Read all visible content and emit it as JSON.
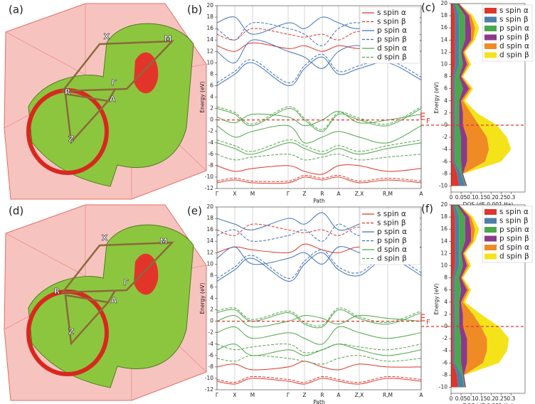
{
  "fermi_surfaces": [
    {
      "panel_label": "(a)",
      "points": [
        "X",
        "M",
        "Γ",
        "R",
        "A",
        "Z"
      ]
    },
    {
      "panel_label": "(d)",
      "points": [
        "X",
        "M",
        "Γ",
        "R",
        "A",
        "Z"
      ]
    }
  ],
  "chart_data": [
    {
      "type": "line",
      "panel_label": "(b)",
      "xlabel": "Path",
      "ylabel": "Energy (eV)",
      "x": [
        0,
        25,
        50,
        100,
        123,
        148,
        171,
        200,
        240,
        287
      ],
      "xlim": [
        0,
        287
      ],
      "xticks": [
        {
          "value": 0,
          "label": "Γ"
        },
        {
          "value": 25,
          "label": "X"
        },
        {
          "value": 50,
          "label": "M"
        },
        {
          "value": 100,
          "label": "Γ"
        },
        {
          "value": 123,
          "label": "Z"
        },
        {
          "value": 148,
          "label": "R"
        },
        {
          "value": 171,
          "label": "A"
        },
        {
          "value": 200,
          "label": "Z,X"
        },
        {
          "value": 240,
          "label": "R,M"
        },
        {
          "value": 287,
          "label": "A"
        }
      ],
      "ylim": [
        -12,
        20
      ],
      "yticks": [
        -12,
        -10,
        -8,
        -6,
        -4,
        -2,
        0,
        2,
        4,
        6,
        8,
        10,
        12,
        14,
        16,
        18,
        20
      ],
      "fermi_level": 0,
      "legend": "upper right",
      "series": [
        {
          "name": "s spin α",
          "color": "#e0352a",
          "dashed": false,
          "bands": [
            [
              -11,
              -10.5,
              -11,
              -11,
              -10,
              -10.5,
              -10,
              -11,
              -10.5,
              -11
            ],
            [
              -8,
              -9,
              -8.5,
              -8,
              -9,
              -9.5,
              -8,
              -8,
              -9,
              -8.5
            ],
            [
              13,
              12,
              13.5,
              12.5,
              13,
              12,
              13,
              12.5,
              13,
              12
            ]
          ]
        },
        {
          "name": "s spin β",
          "color": "#e0352a",
          "dashed": true,
          "bands": [
            [
              -10.7,
              -10.2,
              -10.7,
              -10.7,
              -9.7,
              -10.2,
              -9.7,
              -10.7,
              -10.2,
              -10.7
            ],
            [
              15,
              14,
              16,
              15,
              14.5,
              15,
              14,
              15.5,
              14,
              15
            ]
          ]
        },
        {
          "name": "p spin α",
          "color": "#3f72b5",
          "dashed": false,
          "bands": [
            [
              6,
              8,
              10,
              6,
              9,
              11,
              8,
              9,
              10,
              7
            ],
            [
              12,
              10,
              14,
              12,
              11,
              9,
              12,
              13,
              11,
              14
            ],
            [
              17,
              18,
              15,
              17,
              16,
              18,
              17,
              16,
              18,
              17
            ]
          ]
        },
        {
          "name": "p spin β",
          "color": "#3f72b5",
          "dashed": true,
          "bands": [
            [
              6.5,
              8.5,
              10.5,
              6.5,
              9.5,
              11.5,
              8.5,
              9.5,
              10.5,
              7.5
            ],
            [
              16,
              14,
              17,
              16,
              15,
              13,
              16,
              17,
              15,
              18
            ]
          ]
        },
        {
          "name": "d spin α",
          "color": "#4fa648",
          "dashed": false,
          "bands": [
            [
              2,
              1,
              -1,
              2,
              0,
              -2,
              1,
              0,
              -1,
              2
            ],
            [
              -1,
              -3,
              -2,
              -1,
              -4,
              -3,
              -2,
              -3,
              -4,
              -1
            ],
            [
              -4,
              -5,
              -6,
              -4,
              -5,
              -6,
              -5,
              -6,
              -5,
              -4
            ],
            [
              0.5,
              -0.5,
              1,
              0.5,
              -1,
              0,
              1.5,
              -0.5,
              0,
              1
            ]
          ]
        },
        {
          "name": "d spin β",
          "color": "#4fa648",
          "dashed": true,
          "bands": [
            [
              2.3,
              1.3,
              -0.7,
              2.3,
              0.3,
              -1.7,
              1.3,
              0.3,
              -0.7,
              2.3
            ],
            [
              -3.5,
              -4.5,
              -5.5,
              -3.5,
              -4.5,
              -5.5,
              -4.5,
              -5.5,
              -4.5,
              -3.5
            ],
            [
              -6,
              -7,
              -6.5,
              -6,
              -7,
              -6.5,
              -6,
              -7,
              -6.5,
              -6
            ]
          ]
        }
      ]
    },
    {
      "type": "stacked_area",
      "panel_label": "(c)",
      "xlabel": "DOS (dE 0.001 Ha)",
      "ylabel": "Energy (eV)",
      "fermi_label": "E",
      "fermi_label_sub": "F",
      "fermi_level": 0,
      "xlim": [
        0,
        0.37
      ],
      "xticks": [
        0,
        0.05,
        0.1,
        0.15,
        0.2,
        0.25,
        0.3
      ],
      "ylim": [
        -11,
        20
      ],
      "yticks": [
        -10,
        -8,
        -6,
        -4,
        -2,
        0,
        2,
        4,
        6,
        8,
        10,
        12,
        14,
        16,
        18,
        20
      ],
      "energies": [
        -10,
        -8,
        -6,
        -4,
        -2,
        0,
        2,
        4,
        6,
        8,
        10,
        12,
        14,
        16,
        18,
        20
      ],
      "legend": "upper right",
      "series": [
        {
          "name": "s spin α",
          "color": "#e0352a",
          "values": [
            0.04,
            0.03,
            0.01,
            0.01,
            0.01,
            0.01,
            0.01,
            0.01,
            0.01,
            0.01,
            0.02,
            0.02,
            0.02,
            0.02,
            0.02,
            0.01
          ]
        },
        {
          "name": "s spin β",
          "color": "#4d7fa8",
          "values": [
            0.03,
            0.02,
            0.01,
            0.01,
            0.01,
            0.01,
            0.01,
            0.01,
            0.01,
            0.01,
            0.02,
            0.02,
            0.02,
            0.02,
            0.02,
            0.01
          ]
        },
        {
          "name": "p spin α",
          "color": "#4aa84a",
          "values": [
            0.005,
            0.005,
            0.03,
            0.03,
            0.03,
            0.02,
            0.02,
            0.02,
            0.04,
            0.02,
            0.02,
            0.01,
            0.03,
            0.03,
            0.03,
            0.01
          ]
        },
        {
          "name": "p spin β",
          "color": "#8b3a8b",
          "values": [
            0.005,
            0.005,
            0.03,
            0.03,
            0.03,
            0.02,
            0.02,
            0.01,
            0.03,
            0.01,
            0.02,
            0.01,
            0.03,
            0.03,
            0.02,
            0.01
          ]
        },
        {
          "name": "d spin α",
          "color": "#f08a24",
          "values": [
            0,
            0,
            0.09,
            0.11,
            0.1,
            0.08,
            0.04,
            0.01,
            0.01,
            0.005,
            0.01,
            0.005,
            0.01,
            0.02,
            0.01,
            0
          ]
        },
        {
          "name": "d spin β",
          "color": "#f5e31a",
          "values": [
            0,
            0,
            0.08,
            0.11,
            0.1,
            0.09,
            0.03,
            0.01,
            0.01,
            0.005,
            0.01,
            0.005,
            0.01,
            0.02,
            0.01,
            0
          ]
        }
      ]
    },
    {
      "type": "line",
      "panel_label": "(e)",
      "xlabel": "Path",
      "ylabel": "Energy (eV)",
      "x": [
        0,
        25,
        50,
        100,
        123,
        148,
        171,
        200,
        240,
        287
      ],
      "xlim": [
        0,
        287
      ],
      "xticks": [
        {
          "value": 0,
          "label": "Γ"
        },
        {
          "value": 25,
          "label": "X"
        },
        {
          "value": 50,
          "label": "M"
        },
        {
          "value": 100,
          "label": "Γ"
        },
        {
          "value": 123,
          "label": "Z"
        },
        {
          "value": 148,
          "label": "R"
        },
        {
          "value": 171,
          "label": "A"
        },
        {
          "value": 200,
          "label": "Z,X"
        },
        {
          "value": 240,
          "label": "R,M"
        },
        {
          "value": 287,
          "label": "A"
        }
      ],
      "ylim": [
        -12,
        20
      ],
      "yticks": [
        -12,
        -10,
        -8,
        -6,
        -4,
        -2,
        0,
        2,
        4,
        6,
        8,
        10,
        12,
        14,
        16,
        18,
        20
      ],
      "fermi_level": 0,
      "legend": "upper right",
      "series": [
        {
          "name": "s spin α",
          "color": "#e0352a",
          "dashed": false,
          "bands": [
            [
              -10.5,
              -11,
              -10,
              -10.5,
              -11,
              -10,
              -10.5,
              -11,
              -10,
              -10.5
            ],
            [
              -8,
              -7.5,
              -8.5,
              -8,
              -7,
              -8,
              -8.5,
              -7.5,
              -8,
              -8
            ],
            [
              12,
              13,
              12.5,
              12,
              13.5,
              12.5,
              12,
              13,
              12,
              13
            ]
          ]
        },
        {
          "name": "s spin β",
          "color": "#e0352a",
          "dashed": true,
          "bands": [
            [
              -10.2,
              -10.7,
              -9.7,
              -10.2,
              -10.7,
              -9.7,
              -10.2,
              -10.7,
              -9.7,
              -10.2
            ],
            [
              16,
              15,
              17,
              16,
              15.5,
              16,
              15,
              16.5,
              15,
              16
            ]
          ]
        },
        {
          "name": "p spin α",
          "color": "#3f72b5",
          "dashed": false,
          "bands": [
            [
              7,
              9,
              11,
              7,
              10,
              12,
              9,
              8,
              11,
              8
            ],
            [
              11,
              13,
              10,
              11,
              12,
              10,
              13,
              12,
              10,
              13
            ],
            [
              18,
              17,
              16,
              18,
              17,
              19,
              16,
              17,
              19,
              18
            ]
          ]
        },
        {
          "name": "p spin β",
          "color": "#3f72b5",
          "dashed": true,
          "bands": [
            [
              7.5,
              9.5,
              11.5,
              7.5,
              10.5,
              12.5,
              9.5,
              8.5,
              11.5,
              8.5
            ],
            [
              15,
              16,
              14,
              15,
              16,
              14,
              17,
              15,
              16,
              17
            ]
          ]
        },
        {
          "name": "d spin α",
          "color": "#4fa648",
          "dashed": false,
          "bands": [
            [
              1.5,
              2,
              0,
              1.5,
              -0.5,
              -1,
              2,
              0.5,
              -0.5,
              1.5
            ],
            [
              -2,
              -1,
              -3,
              -2,
              -3,
              -4,
              -1,
              -2,
              -3,
              -2
            ],
            [
              -5,
              -4,
              -6,
              -5,
              -6,
              -5,
              -4,
              -5,
              -6,
              -5
            ],
            [
              0,
              1,
              -1,
              0,
              1,
              0.5,
              -0.5,
              1,
              0.5,
              0
            ]
          ]
        },
        {
          "name": "d spin β",
          "color": "#4fa648",
          "dashed": true,
          "bands": [
            [
              1.8,
              2.3,
              0.3,
              1.8,
              -0.2,
              -0.7,
              2.3,
              0.8,
              -0.2,
              1.8
            ],
            [
              -4,
              -5,
              -4.5,
              -4,
              -5.5,
              -5,
              -4,
              -4.5,
              -5,
              -4
            ],
            [
              -6.5,
              -7,
              -6,
              -6.5,
              -7,
              -7.5,
              -6.5,
              -6,
              -7,
              -6.5
            ]
          ]
        }
      ]
    },
    {
      "type": "stacked_area",
      "panel_label": "(f)",
      "xlabel": "DOS (dE 0.001 Ha)",
      "ylabel": "Energy (eV)",
      "fermi_label": "E",
      "fermi_label_sub": "F",
      "fermi_level": 0,
      "xlim": [
        0,
        0.37
      ],
      "xticks": [
        0,
        0.05,
        0.1,
        0.15,
        0.2,
        0.25,
        0.3
      ],
      "ylim": [
        -11,
        20
      ],
      "yticks": [
        -10,
        -8,
        -6,
        -4,
        -2,
        0,
        2,
        4,
        6,
        8,
        10,
        12,
        14,
        16,
        18,
        20
      ],
      "energies": [
        -10,
        -8,
        -6,
        -4,
        -2,
        0,
        2,
        4,
        6,
        8,
        10,
        12,
        14,
        16,
        18,
        20
      ],
      "legend": "upper right",
      "series": [
        {
          "name": "s spin α",
          "color": "#e0352a",
          "values": [
            0.035,
            0.03,
            0.01,
            0.01,
            0.01,
            0.01,
            0.01,
            0.01,
            0.01,
            0.01,
            0.02,
            0.02,
            0.02,
            0.02,
            0.02,
            0.01
          ]
        },
        {
          "name": "s spin β",
          "color": "#4d7fa8",
          "values": [
            0.03,
            0.025,
            0.01,
            0.01,
            0.01,
            0.01,
            0.01,
            0.01,
            0.01,
            0.01,
            0.02,
            0.02,
            0.02,
            0.02,
            0.02,
            0.01
          ]
        },
        {
          "name": "p spin α",
          "color": "#4aa84a",
          "values": [
            0.005,
            0.005,
            0.03,
            0.03,
            0.03,
            0.02,
            0.02,
            0.02,
            0.03,
            0.02,
            0.02,
            0.01,
            0.03,
            0.03,
            0.03,
            0.01
          ]
        },
        {
          "name": "p spin β",
          "color": "#8b3a8b",
          "values": [
            0.005,
            0.005,
            0.03,
            0.03,
            0.03,
            0.02,
            0.02,
            0.01,
            0.03,
            0.01,
            0.02,
            0.01,
            0.03,
            0.03,
            0.02,
            0.01
          ]
        },
        {
          "name": "d spin α",
          "color": "#f08a24",
          "values": [
            0,
            0,
            0.08,
            0.1,
            0.1,
            0.09,
            0.05,
            0.01,
            0.01,
            0.005,
            0.01,
            0.005,
            0.01,
            0.02,
            0.01,
            0
          ]
        },
        {
          "name": "d spin β",
          "color": "#f5e31a",
          "values": [
            0,
            0,
            0.08,
            0.1,
            0.11,
            0.09,
            0.04,
            0.01,
            0.01,
            0.005,
            0.01,
            0.005,
            0.01,
            0.02,
            0.01,
            0
          ]
        }
      ]
    }
  ]
}
